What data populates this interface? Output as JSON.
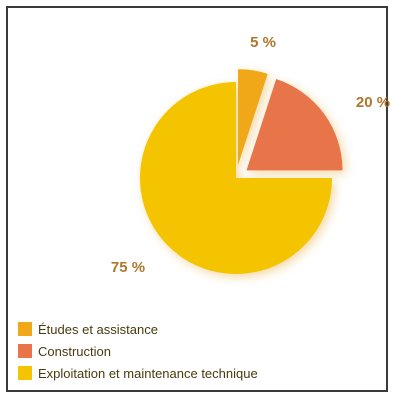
{
  "chart_data": {
    "type": "pie",
    "slices": [
      {
        "label": "Études et assistance",
        "value": 5,
        "value_label": "5 %",
        "color": "#f0a818"
      },
      {
        "label": "Construction",
        "value": 20,
        "value_label": "20 %",
        "color": "#e8744a"
      },
      {
        "label": "Exploitation et maintenance technique",
        "value": 75,
        "value_label": "75 %",
        "color": "#f5c400"
      }
    ],
    "exploded": [
      "Études et assistance",
      "Construction"
    ],
    "label_color": "#b0762c",
    "legend_position": "bottom-left"
  }
}
